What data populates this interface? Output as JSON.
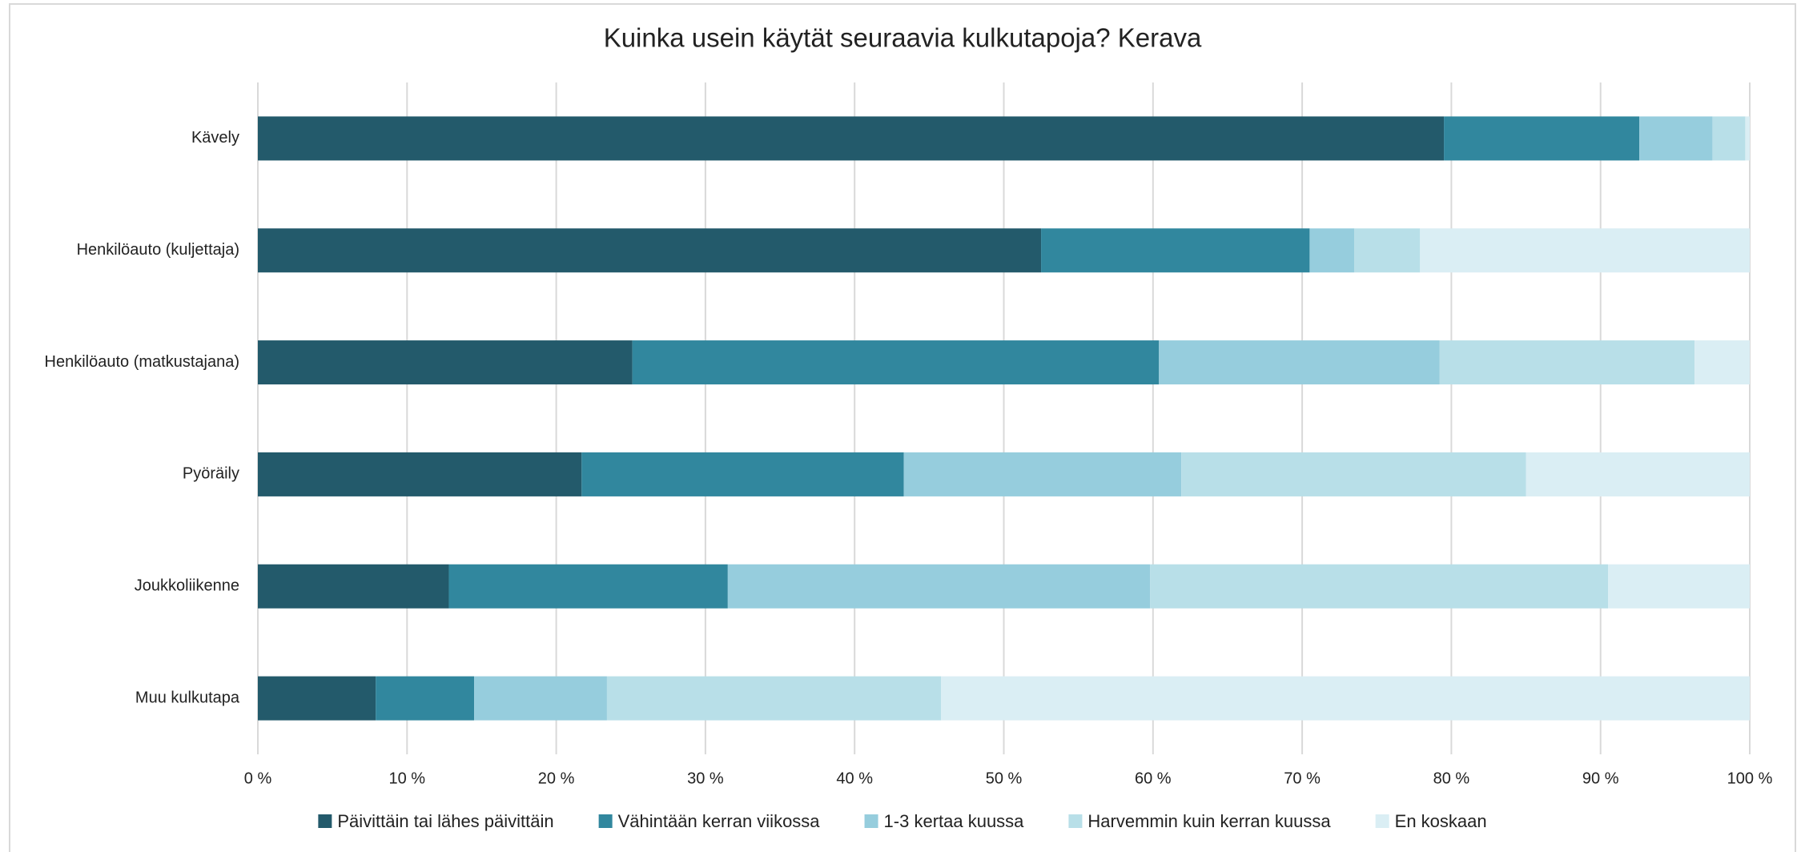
{
  "chart_data": {
    "type": "stacked-bar-horizontal",
    "title": "Kuinka usein käytät seuraavia kulkutapoja? Kerava",
    "categories": [
      "Kävely",
      "Henkilöauto (kuljettaja)",
      "Henkilöauto (matkustajana)",
      "Pyöräily",
      "Joukkoliikenne",
      "Muu kulkutapa"
    ],
    "series": [
      {
        "name": "Päivittäin tai lähes päivittäin",
        "color": "#235a6b",
        "values": [
          79.5,
          52.5,
          25.1,
          21.7,
          12.8,
          7.9
        ]
      },
      {
        "name": "Vähintään kerran viikossa",
        "color": "#31879e",
        "values": [
          13.1,
          18.0,
          35.3,
          21.6,
          18.7,
          6.6
        ]
      },
      {
        "name": "1-3 kertaa kuussa",
        "color": "#96cddd",
        "values": [
          4.9,
          3.0,
          18.8,
          18.6,
          28.3,
          8.9
        ]
      },
      {
        "name": "Harvemmin kuin kerran kuussa",
        "color": "#b8dfe8",
        "values": [
          2.2,
          4.4,
          17.1,
          23.1,
          30.7,
          22.4
        ]
      },
      {
        "name": "En koskaan",
        "color": "#daeef4",
        "values": [
          0.3,
          22.1,
          3.7,
          15.0,
          9.5,
          54.2
        ]
      }
    ],
    "xlim": [
      0,
      100
    ],
    "xticks": [
      {
        "value": 0,
        "label": "0 %"
      },
      {
        "value": 10,
        "label": "10 %"
      },
      {
        "value": 20,
        "label": "20 %"
      },
      {
        "value": 30,
        "label": "30 %"
      },
      {
        "value": 40,
        "label": "40 %"
      },
      {
        "value": 50,
        "label": "50 %"
      },
      {
        "value": 60,
        "label": "60 %"
      },
      {
        "value": 70,
        "label": "70 %"
      },
      {
        "value": 80,
        "label": "80 %"
      },
      {
        "value": 90,
        "label": "90 %"
      },
      {
        "value": 100,
        "label": "100 %"
      }
    ],
    "grid": true,
    "legend": "bottom"
  }
}
